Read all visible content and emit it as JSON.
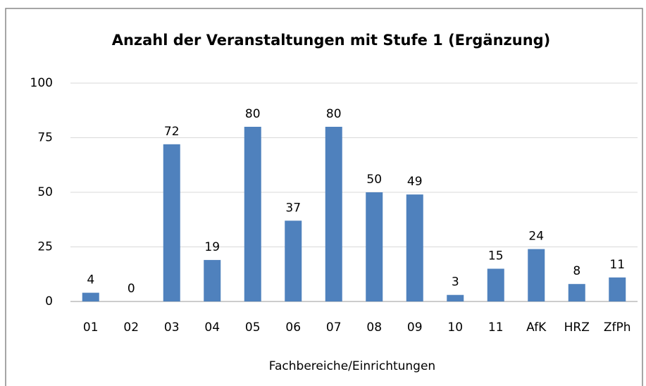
{
  "chart_data": {
    "type": "bar",
    "title": "Anzahl der Veranstaltungen mit Stufe 1 (Ergänzung)",
    "x_label": "Fachbereiche/Einrichtungen",
    "categories": [
      "01",
      "02",
      "03",
      "04",
      "05",
      "06",
      "07",
      "08",
      "09",
      "10",
      "11",
      "AfK",
      "HRZ",
      "ZfPh"
    ],
    "values": [
      4,
      0,
      72,
      19,
      80,
      37,
      80,
      50,
      49,
      3,
      15,
      24,
      8,
      11
    ],
    "color": "#4f81bd",
    "ylim": [
      0,
      100
    ],
    "yticks": [
      0,
      25,
      50,
      75,
      100
    ],
    "grid": true
  }
}
